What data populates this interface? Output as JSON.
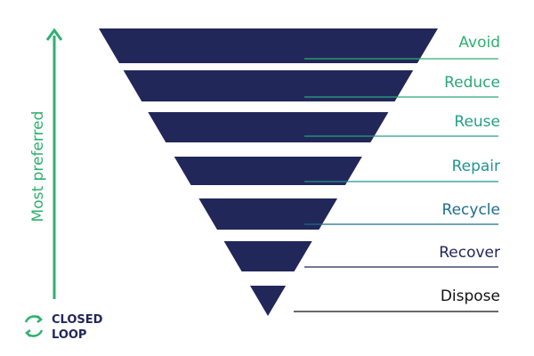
{
  "hierarchy": {
    "axis_label": "Most preferred",
    "levels": [
      {
        "label": "Avoid"
      },
      {
        "label": "Reduce"
      },
      {
        "label": "Reuse"
      },
      {
        "label": "Repair"
      },
      {
        "label": "Recycle"
      },
      {
        "label": "Recover"
      },
      {
        "label": "Dispose"
      }
    ]
  },
  "logo": {
    "lines": [
      "CLOSED",
      "LOOP"
    ]
  }
}
